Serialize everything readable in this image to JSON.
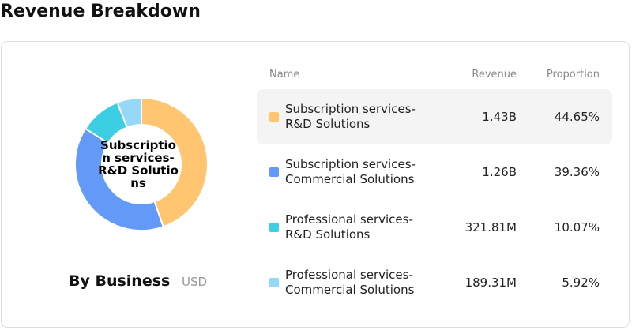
{
  "header": {
    "title": "Revenue Breakdown"
  },
  "donut": {
    "center_label": "Subscription services- R&D Solutions",
    "caption": "By Business",
    "unit": "USD"
  },
  "table": {
    "columns": [
      "Name",
      "Revenue",
      "Proportion"
    ],
    "rows": [
      {
        "name": "Subscription services-R&D Solutions",
        "color": "#ffc570",
        "revenue": "1.43B",
        "proportion": {
          "value": 44.65,
          "label": "44.65%"
        }
      },
      {
        "name": "Subscription services-Commercial Solutions",
        "color": "#6399f7",
        "revenue": "1.26B",
        "proportion": {
          "value": 39.36,
          "label": "39.36%"
        }
      },
      {
        "name": "Professional services-R&D Solutions",
        "color": "#3ccfe4",
        "revenue": "321.81M",
        "proportion": {
          "value": 10.07,
          "label": "10.07%"
        }
      },
      {
        "name": "Professional services-Commercial Solutions",
        "color": "#96d8f8",
        "revenue": "189.31M",
        "proportion": {
          "value": 5.92,
          "label": "5.92%"
        }
      }
    ]
  }
}
